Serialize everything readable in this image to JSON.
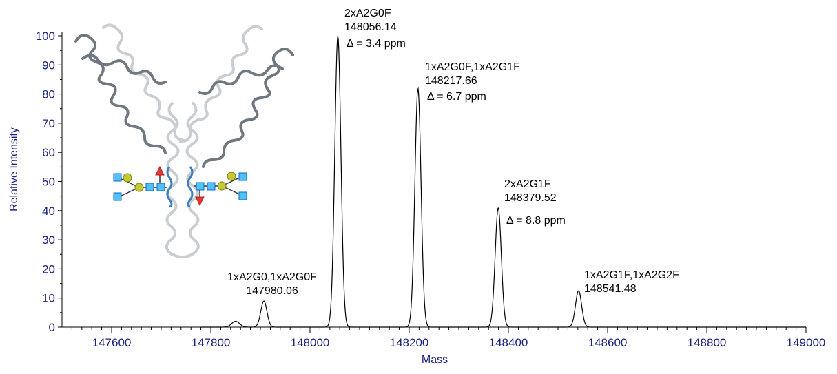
{
  "chart_data": {
    "type": "line",
    "title": "",
    "xlabel": "Mass",
    "ylabel": "Relative Intensity",
    "xlim": [
      147500,
      149000
    ],
    "ylim": [
      0,
      100
    ],
    "x_ticks": [
      147600,
      147800,
      148000,
      148200,
      148400,
      148600,
      148800,
      149000
    ],
    "y_ticks": [
      0,
      10,
      20,
      30,
      40,
      50,
      60,
      70,
      80,
      90,
      100
    ],
    "x_tick_labels": [
      "147600",
      "147800",
      "148000",
      "148200",
      "148400",
      "148600",
      "148800",
      "149000"
    ],
    "y_tick_labels": [
      "0",
      "10",
      "20",
      "30",
      "40",
      "50",
      "60",
      "70",
      "80",
      "90",
      "100"
    ],
    "grid": false,
    "series": [
      {
        "peaks": [
          {
            "mass": 147850,
            "intensity": 2
          },
          {
            "mass": 147907,
            "intensity": 9
          },
          {
            "mass": 148056.14,
            "intensity": 100
          },
          {
            "mass": 148217.66,
            "intensity": 82
          },
          {
            "mass": 148379.52,
            "intensity": 41
          },
          {
            "mass": 148541.48,
            "intensity": 12.5
          }
        ]
      }
    ],
    "annotations": [
      {
        "lines": [
          "1xA2G0,1xA2G0F",
          "147980.06"
        ]
      },
      {
        "lines": [
          "2xA2G0F",
          "148056.14",
          "Δ = 3.4 ppm"
        ]
      },
      {
        "lines": [
          "1xA2G0F,1xA2G1F",
          "148217.66",
          "Δ = 6.7 ppm"
        ]
      },
      {
        "lines": [
          "2xA2G1F",
          "148379.52",
          "Δ = 8.8 ppm"
        ]
      },
      {
        "lines": [
          "1xA2G1F,1xA2G2F",
          "148541.48"
        ]
      }
    ],
    "colors": {
      "trace": "#000000",
      "axis_text": "#1a237e",
      "antibody_dark": "#6f7780",
      "antibody_light": "#c9ced3",
      "glcnac": "#4fc3f7",
      "galactose": "#c0ca33",
      "fucose": "#e53935",
      "peptide": "#3f7fbf"
    }
  }
}
